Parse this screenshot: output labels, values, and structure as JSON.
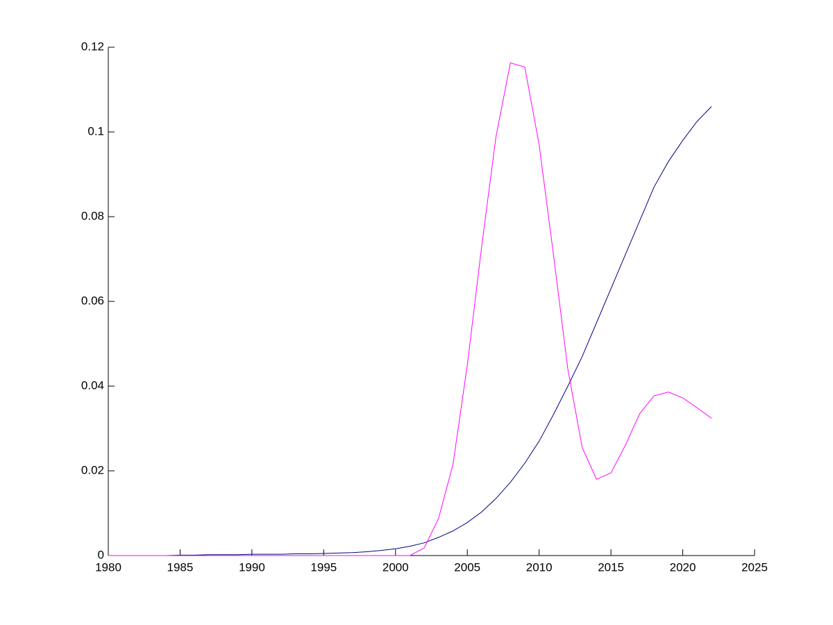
{
  "chart_data": {
    "type": "line",
    "x": [
      1980,
      1981,
      1982,
      1983,
      1984,
      1985,
      1986,
      1987,
      1988,
      1989,
      1990,
      1991,
      1992,
      1993,
      1994,
      1995,
      1996,
      1997,
      1998,
      1999,
      2000,
      2001,
      2002,
      2003,
      2004,
      2005,
      2006,
      2007,
      2008,
      2009,
      2010,
      2011,
      2012,
      2013,
      2014,
      2015,
      2016,
      2017,
      2018,
      2019,
      2020,
      2021,
      2022
    ],
    "series": [
      {
        "color": "#00007f",
        "values": [
          0,
          0,
          0,
          0,
          0,
          0.0001,
          0.0001,
          0.0002,
          0.0002,
          0.0002,
          0.0003,
          0.0003,
          0.0003,
          0.0004,
          0.0004,
          0.0005,
          0.0006,
          0.0007,
          0.0009,
          0.0012,
          0.0016,
          0.0022,
          0.003,
          0.0043,
          0.0058,
          0.0078,
          0.0103,
          0.0135,
          0.0173,
          0.0218,
          0.027,
          0.0333,
          0.04,
          0.047,
          0.055,
          0.063,
          0.071,
          0.079,
          0.087,
          0.093,
          0.098,
          0.1025,
          0.106
        ]
      },
      {
        "color": "#ff00ff",
        "values": [
          0,
          0,
          0,
          0,
          0,
          0,
          0,
          0,
          0,
          0,
          0,
          0,
          0,
          0,
          0,
          0,
          0,
          0,
          0,
          0,
          0,
          0,
          0.0018,
          0.0088,
          0.0215,
          0.045,
          0.073,
          0.099,
          0.1163,
          0.1153,
          0.097,
          0.071,
          0.044,
          0.0255,
          0.018,
          0.0195,
          0.026,
          0.0335,
          0.0377,
          0.0386,
          0.0372,
          0.0349,
          0.0324
        ]
      }
    ],
    "xlim": [
      1980,
      2025
    ],
    "xticks": [
      1980,
      1985,
      1990,
      1995,
      2000,
      2005,
      2010,
      2015,
      2020,
      2025
    ],
    "ylim": [
      0,
      0.12
    ],
    "yticks": [
      0,
      0.02,
      0.04,
      0.06,
      0.08,
      0.1,
      0.12
    ]
  }
}
